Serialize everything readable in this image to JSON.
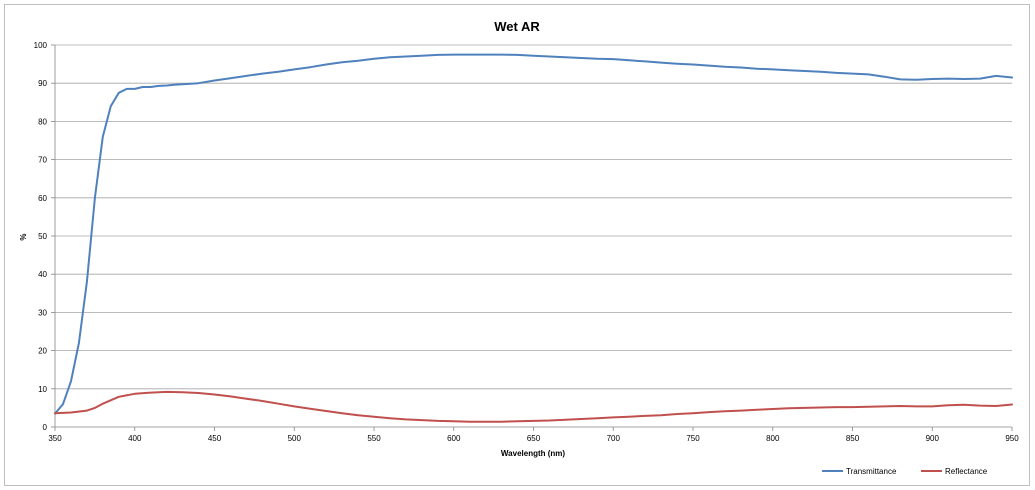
{
  "chart_data": {
    "type": "line",
    "title": "Wet AR",
    "xlabel": "Wavelength (nm)",
    "ylabel": "%",
    "xlim": [
      350,
      950
    ],
    "ylim": [
      0,
      100
    ],
    "xticks": [
      350,
      400,
      450,
      500,
      550,
      600,
      650,
      700,
      750,
      800,
      850,
      900,
      950
    ],
    "yticks": [
      0,
      10,
      20,
      30,
      40,
      50,
      60,
      70,
      80,
      90,
      100
    ],
    "grid": "horizontal",
    "legend_position": "bottom-right",
    "series": [
      {
        "name": "Transmittance",
        "color": "#4f81bd",
        "x": [
          350,
          355,
          360,
          365,
          370,
          375,
          380,
          385,
          390,
          395,
          400,
          405,
          410,
          415,
          420,
          425,
          430,
          440,
          450,
          460,
          470,
          480,
          490,
          500,
          510,
          520,
          530,
          540,
          550,
          560,
          570,
          580,
          590,
          600,
          610,
          620,
          630,
          640,
          650,
          660,
          670,
          680,
          690,
          700,
          710,
          720,
          730,
          740,
          750,
          760,
          770,
          780,
          790,
          800,
          810,
          820,
          830,
          840,
          850,
          860,
          870,
          880,
          890,
          900,
          910,
          920,
          930,
          940,
          950
        ],
        "y": [
          3.5,
          6,
          12,
          22,
          38,
          60,
          76,
          84,
          87.5,
          88.5,
          88.5,
          89,
          89,
          89.3,
          89.4,
          89.6,
          89.7,
          90,
          90.7,
          91.3,
          91.9,
          92.5,
          93,
          93.6,
          94.2,
          94.9,
          95.5,
          95.9,
          96.4,
          96.8,
          97,
          97.2,
          97.4,
          97.5,
          97.5,
          97.5,
          97.5,
          97.4,
          97.2,
          97,
          96.8,
          96.6,
          96.4,
          96.3,
          96,
          95.7,
          95.4,
          95.1,
          94.9,
          94.6,
          94.3,
          94.1,
          93.8,
          93.6,
          93.4,
          93.2,
          93,
          92.7,
          92.5,
          92.3,
          91.7,
          91,
          90.9,
          91.1,
          91.2,
          91.1,
          91.2,
          91.9,
          91.5
        ]
      },
      {
        "name": "Reflectance",
        "color": "#c0504d",
        "x": [
          350,
          360,
          370,
          375,
          380,
          390,
          400,
          410,
          420,
          430,
          440,
          450,
          460,
          470,
          480,
          490,
          500,
          510,
          520,
          530,
          540,
          550,
          560,
          570,
          580,
          590,
          600,
          610,
          620,
          630,
          640,
          650,
          660,
          670,
          680,
          690,
          700,
          710,
          720,
          730,
          740,
          750,
          760,
          770,
          780,
          790,
          800,
          810,
          820,
          830,
          840,
          850,
          860,
          870,
          880,
          890,
          900,
          910,
          920,
          930,
          940,
          950
        ],
        "y": [
          3.6,
          3.8,
          4.3,
          5,
          6.1,
          7.9,
          8.7,
          9,
          9.2,
          9.1,
          8.9,
          8.5,
          8,
          7.4,
          6.8,
          6.1,
          5.4,
          4.8,
          4.2,
          3.6,
          3.1,
          2.7,
          2.3,
          2,
          1.8,
          1.6,
          1.5,
          1.4,
          1.4,
          1.4,
          1.5,
          1.6,
          1.7,
          1.9,
          2.1,
          2.3,
          2.5,
          2.7,
          2.9,
          3.1,
          3.4,
          3.6,
          3.9,
          4.1,
          4.3,
          4.5,
          4.7,
          4.9,
          5,
          5.1,
          5.2,
          5.2,
          5.3,
          5.4,
          5.5,
          5.4,
          5.4,
          5.7,
          5.8,
          5.6,
          5.5,
          5.9
        ]
      }
    ]
  }
}
